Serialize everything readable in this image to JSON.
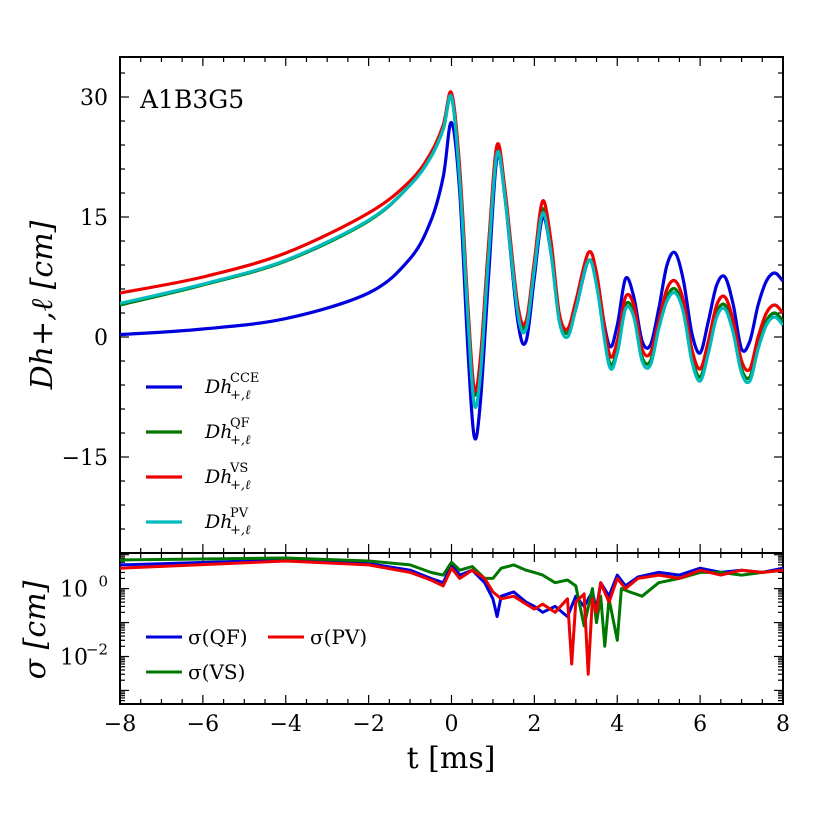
{
  "chart_data": [
    {
      "type": "line",
      "panel": "top",
      "annotation": "A1B3G5",
      "ylabel": "Dh+,ℓ [cm]",
      "xlim": [
        -8,
        8
      ],
      "ylim": [
        -27,
        35
      ],
      "yticks": [
        -15,
        0,
        15,
        30
      ],
      "ytick_labels": [
        "−15",
        "0",
        "15",
        "30"
      ],
      "legend_position": "lower-left",
      "series": [
        {
          "name": "CCE",
          "color": "#0000dd",
          "x": [
            -8,
            -6,
            -4,
            -2,
            -1,
            -0.5,
            -0.2,
            0,
            0.2,
            0.4,
            0.55,
            0.7,
            0.9,
            1.1,
            1.3,
            1.6,
            1.8,
            2.0,
            2.2,
            2.4,
            2.6,
            2.8,
            3.0,
            3.3,
            3.5,
            3.8,
            4.0,
            4.2,
            4.4,
            4.6,
            4.8,
            5.0,
            5.2,
            5.4,
            5.6,
            5.8,
            6.0,
            6.2,
            6.4,
            6.6,
            6.8,
            7.0,
            7.2,
            7.4,
            7.6,
            7.8,
            8.0
          ],
          "y": [
            0.3,
            1.0,
            2.3,
            5.5,
            9.8,
            14.5,
            20.0,
            26.8,
            18.0,
            -2.0,
            -12.5,
            -8.0,
            8.0,
            22.5,
            17.0,
            2.0,
            -0.5,
            7.5,
            15.0,
            10.5,
            2.5,
            0.5,
            3.5,
            9.5,
            7.0,
            -1.0,
            1.5,
            7.3,
            5.0,
            -0.5,
            -1.0,
            3.5,
            9.0,
            10.5,
            7.0,
            0.5,
            -2.0,
            2.0,
            6.5,
            7.5,
            4.0,
            -1.5,
            -0.5,
            4.0,
            7.0,
            8.0,
            7.0
          ]
        },
        {
          "name": "QF",
          "color": "#007700",
          "x": [
            -8,
            -6,
            -4,
            -2,
            -1,
            -0.5,
            -0.2,
            0,
            0.2,
            0.4,
            0.55,
            0.7,
            0.9,
            1.1,
            1.3,
            1.6,
            1.8,
            2.0,
            2.2,
            2.4,
            2.6,
            2.8,
            3.0,
            3.3,
            3.5,
            3.8,
            4.0,
            4.2,
            4.4,
            4.6,
            4.8,
            5.0,
            5.2,
            5.4,
            5.6,
            5.8,
            6.0,
            6.2,
            6.4,
            6.6,
            6.8,
            7.0,
            7.2,
            7.4,
            7.6,
            7.8,
            8.0
          ],
          "y": [
            4.0,
            6.5,
            9.5,
            14.5,
            19.0,
            22.5,
            26.0,
            30.0,
            20.0,
            3.0,
            -7.0,
            -3.0,
            11.5,
            23.5,
            17.5,
            3.5,
            1.5,
            9.0,
            16.0,
            11.0,
            2.5,
            0.5,
            4.0,
            9.5,
            7.0,
            -3.0,
            -1.5,
            4.0,
            3.0,
            -2.5,
            -3.0,
            1.5,
            5.0,
            6.0,
            3.5,
            -2.5,
            -5.0,
            -1.5,
            3.0,
            4.0,
            1.0,
            -4.0,
            -5.0,
            -1.0,
            2.0,
            3.0,
            2.0
          ]
        },
        {
          "name": "VS",
          "color": "#ee0000",
          "x": [
            -8,
            -6,
            -4,
            -2,
            -1,
            -0.5,
            -0.2,
            0,
            0.2,
            0.4,
            0.55,
            0.7,
            0.9,
            1.1,
            1.3,
            1.6,
            1.8,
            2.0,
            2.2,
            2.4,
            2.6,
            2.8,
            3.0,
            3.3,
            3.5,
            3.8,
            4.0,
            4.2,
            4.4,
            4.6,
            4.8,
            5.0,
            5.2,
            5.4,
            5.6,
            5.8,
            6.0,
            6.2,
            6.4,
            6.6,
            6.8,
            7.0,
            7.2,
            7.4,
            7.6,
            7.8,
            8.0
          ],
          "y": [
            5.5,
            7.5,
            10.5,
            15.5,
            19.5,
            23.0,
            26.5,
            30.5,
            21.0,
            3.5,
            -6.5,
            -2.5,
            12.0,
            24.0,
            18.0,
            4.0,
            2.0,
            9.5,
            17.0,
            12.0,
            3.0,
            1.0,
            4.5,
            10.5,
            8.0,
            -2.0,
            -0.5,
            5.0,
            4.0,
            -1.5,
            -2.0,
            2.0,
            6.0,
            7.0,
            4.5,
            -1.5,
            -4.0,
            -0.5,
            4.0,
            5.0,
            2.0,
            -3.0,
            -4.0,
            0.0,
            3.0,
            4.0,
            3.0
          ]
        },
        {
          "name": "PV",
          "color": "#00bbbb",
          "x": [
            -8,
            -6,
            -4,
            -2,
            -1,
            -0.5,
            -0.2,
            0,
            0.2,
            0.4,
            0.55,
            0.7,
            0.9,
            1.1,
            1.3,
            1.6,
            1.8,
            2.0,
            2.2,
            2.4,
            2.6,
            2.8,
            3.0,
            3.3,
            3.5,
            3.8,
            4.0,
            4.2,
            4.4,
            4.6,
            4.8,
            5.0,
            5.2,
            5.4,
            5.6,
            5.8,
            6.0,
            6.2,
            6.4,
            6.6,
            6.8,
            7.0,
            7.2,
            7.4,
            7.6,
            7.8,
            8.0
          ],
          "y": [
            4.2,
            6.6,
            9.6,
            14.6,
            19.0,
            22.5,
            26.0,
            30.0,
            19.5,
            2.0,
            -8.5,
            -4.5,
            10.5,
            23.0,
            17.0,
            3.0,
            1.0,
            8.5,
            15.5,
            10.5,
            2.0,
            0.0,
            3.5,
            9.5,
            6.5,
            -3.5,
            -2.0,
            3.5,
            2.5,
            -3.0,
            -3.5,
            1.0,
            4.5,
            5.5,
            3.0,
            -3.0,
            -5.5,
            -2.0,
            2.5,
            3.5,
            0.5,
            -4.5,
            -5.5,
            -1.5,
            1.5,
            2.5,
            1.5
          ]
        }
      ]
    },
    {
      "type": "line",
      "panel": "bottom",
      "ylabel": "σ [cm]",
      "xlabel": "t [ms]",
      "xlim": [
        -8,
        8
      ],
      "xticks": [
        -8,
        -6,
        -4,
        -2,
        0,
        2,
        4,
        6,
        8
      ],
      "xtick_labels": [
        "−8",
        "−6",
        "−4",
        "−2",
        "0",
        "2",
        "4",
        "6",
        "8"
      ],
      "yscale": "log",
      "ylim_log10": [
        -3.4,
        1.05
      ],
      "yticks_log10": [
        -2,
        0
      ],
      "legend_position": "lower-left",
      "series": [
        {
          "name": "σ(QF)",
          "color": "#0000dd",
          "x": [
            -8,
            -4,
            -2,
            -1,
            -0.5,
            -0.2,
            0,
            0.2,
            0.5,
            0.8,
            1.0,
            1.1,
            1.2,
            1.5,
            1.8,
            2.0,
            2.2,
            2.5,
            2.8,
            3.0,
            3.2,
            3.4,
            3.5,
            3.6,
            3.8,
            4.0,
            4.2,
            4.5,
            5.0,
            5.5,
            6.0,
            6.5,
            7.0,
            7.5,
            8.0
          ],
          "y": [
            5.0,
            7.0,
            5.5,
            3.5,
            2.0,
            1.5,
            5.0,
            2.5,
            3.5,
            1.5,
            0.5,
            0.15,
            0.6,
            0.8,
            0.4,
            0.3,
            0.2,
            0.3,
            0.15,
            0.6,
            0.3,
            0.8,
            0.25,
            1.5,
            0.6,
            2.5,
            1.2,
            2.2,
            3.0,
            2.5,
            4.0,
            3.0,
            3.5,
            3.0,
            4.0
          ]
        },
        {
          "name": "σ(VS)",
          "color": "#007700",
          "x": [
            -8,
            -4,
            -2,
            -1,
            -0.5,
            -0.2,
            0,
            0.2,
            0.5,
            0.8,
            1.0,
            1.2,
            1.5,
            1.8,
            2.0,
            2.2,
            2.5,
            2.8,
            3.0,
            3.2,
            3.4,
            3.5,
            3.6,
            3.7,
            3.8,
            4.0,
            4.1,
            4.3,
            4.6,
            5.0,
            5.5,
            6.0,
            6.5,
            7.0,
            7.5,
            8.0
          ],
          "y": [
            7.0,
            8.0,
            6.5,
            5.0,
            3.0,
            2.5,
            6.0,
            3.5,
            4.5,
            2.0,
            2.0,
            4.0,
            5.0,
            3.5,
            3.0,
            2.5,
            1.5,
            1.8,
            1.2,
            0.08,
            1.0,
            0.1,
            0.6,
            0.02,
            0.5,
            0.03,
            1.0,
            0.8,
            0.6,
            1.5,
            2.0,
            3.0,
            3.0,
            2.5,
            3.0,
            3.5
          ]
        },
        {
          "name": "σ(PV)",
          "color": "#ee0000",
          "x": [
            -8,
            -4,
            -2,
            -1,
            -0.5,
            -0.2,
            0,
            0.2,
            0.5,
            0.8,
            1.0,
            1.2,
            1.5,
            1.8,
            2.0,
            2.2,
            2.5,
            2.8,
            2.9,
            3.0,
            3.2,
            3.3,
            3.4,
            3.5,
            3.6,
            3.8,
            4.0,
            4.2,
            4.5,
            5.0,
            5.5,
            6.0,
            6.5,
            7.0,
            7.5,
            8.0
          ],
          "y": [
            4.0,
            6.5,
            5.0,
            3.0,
            1.8,
            1.2,
            4.0,
            2.0,
            3.5,
            2.0,
            0.8,
            0.5,
            0.6,
            0.35,
            0.25,
            0.35,
            0.2,
            0.5,
            0.006,
            0.4,
            0.7,
            0.003,
            0.5,
            0.2,
            1.5,
            0.4,
            2.0,
            1.0,
            2.0,
            2.5,
            2.0,
            3.5,
            2.5,
            3.5,
            3.0,
            3.5
          ]
        }
      ]
    }
  ]
}
